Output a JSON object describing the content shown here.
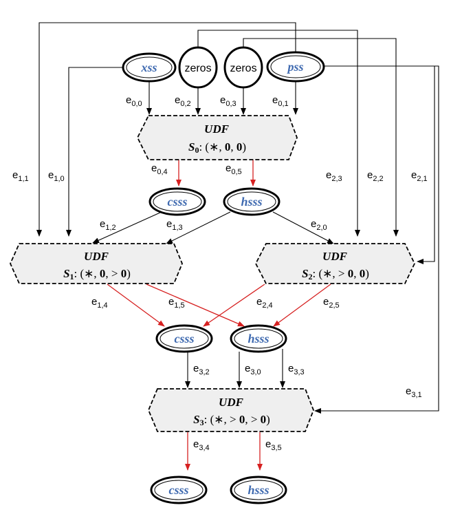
{
  "sources": {
    "xss": "xss",
    "zeros_a": "zeros",
    "zeros_b": "zeros",
    "pss": "pss"
  },
  "udf": {
    "title": "UDF",
    "s0": {
      "name": "S",
      "sub": "0",
      "sep": ": (∗, ",
      "a": "0",
      "c1": ", ",
      "b": "0",
      "end": ")"
    },
    "s1": {
      "name": "S",
      "sub": "1",
      "sep": ": (∗, ",
      "a": "0",
      "c1": ", > ",
      "b": "0",
      "end": ")"
    },
    "s2": {
      "name": "S",
      "sub": "2",
      "sep": ": (∗, > ",
      "a": "0",
      "c1": ", ",
      "b": "0",
      "end": ")"
    },
    "s3": {
      "name": "S",
      "sub": "3",
      "sep": ": (∗, > ",
      "a": "0",
      "c1": ", > ",
      "b": "0",
      "end": ")"
    }
  },
  "outputs": {
    "csss": "csss",
    "hsss": "hsss"
  },
  "edges": {
    "e00": {
      "b": "e",
      "s": "0,0"
    },
    "e02": {
      "b": "e",
      "s": "0,2"
    },
    "e03": {
      "b": "e",
      "s": "0,3"
    },
    "e01": {
      "b": "e",
      "s": "0,1"
    },
    "e04": {
      "b": "e",
      "s": "0,4"
    },
    "e05": {
      "b": "e",
      "s": "0,5"
    },
    "e11": {
      "b": "e",
      "s": "1,1"
    },
    "e10": {
      "b": "e",
      "s": "1,0"
    },
    "e23": {
      "b": "e",
      "s": "2,3"
    },
    "e22": {
      "b": "e",
      "s": "2,2"
    },
    "e21": {
      "b": "e",
      "s": "2,1"
    },
    "e12": {
      "b": "e",
      "s": "1,2"
    },
    "e13": {
      "b": "e",
      "s": "1,3"
    },
    "e20": {
      "b": "e",
      "s": "2,0"
    },
    "e14": {
      "b": "e",
      "s": "1,4"
    },
    "e15": {
      "b": "e",
      "s": "1,5"
    },
    "e24": {
      "b": "e",
      "s": "2,4"
    },
    "e25": {
      "b": "e",
      "s": "2,5"
    },
    "e32": {
      "b": "e",
      "s": "3,2"
    },
    "e30": {
      "b": "e",
      "s": "3,0"
    },
    "e33": {
      "b": "e",
      "s": "3,3"
    },
    "e31": {
      "b": "e",
      "s": "3,1"
    },
    "e34": {
      "b": "e",
      "s": "3,4"
    },
    "e35": {
      "b": "e",
      "s": "3,5"
    }
  },
  "colors": {
    "edge_black": "#000000",
    "edge_red": "#d62020",
    "node_text": "#3f6ab0",
    "udf_fill": "#efefef"
  }
}
